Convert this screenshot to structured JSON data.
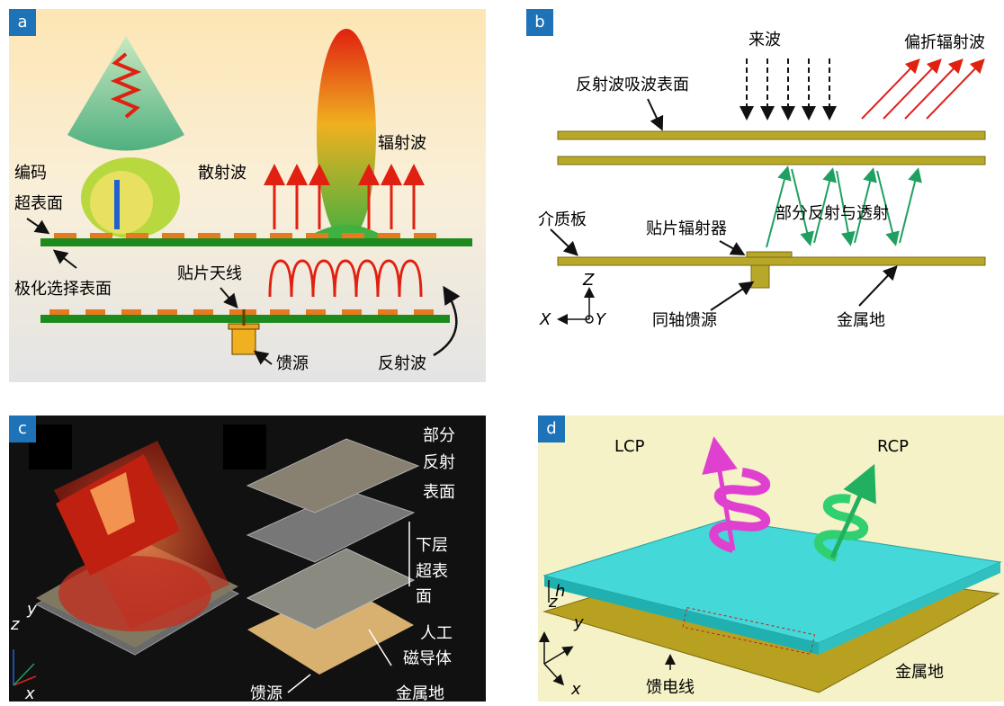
{
  "panels": [
    {
      "label": "a",
      "texts": [
        "编码",
        "超表面",
        "散射波",
        "辐射波",
        "极化选择表面",
        "贴片天线",
        "馈源",
        "反射波"
      ]
    },
    {
      "label": "b",
      "texts": [
        "来波",
        "偏折辐射波",
        "反射波吸波表面",
        "介质板",
        "贴片辐射器",
        "部分反射与透射",
        "Z",
        "X",
        "Y",
        "同轴馈源",
        "金属地"
      ]
    },
    {
      "label": "c",
      "texts": [
        "部分",
        "反射",
        "表面",
        "下层",
        "超表",
        "面",
        "人工",
        "磁导体",
        "馈源",
        "金属地",
        "z",
        "y",
        "x"
      ]
    },
    {
      "label": "d",
      "texts": [
        "LCP",
        "RCP",
        "h",
        "z",
        "y",
        "x",
        "馈电线",
        "金属地"
      ]
    }
  ]
}
